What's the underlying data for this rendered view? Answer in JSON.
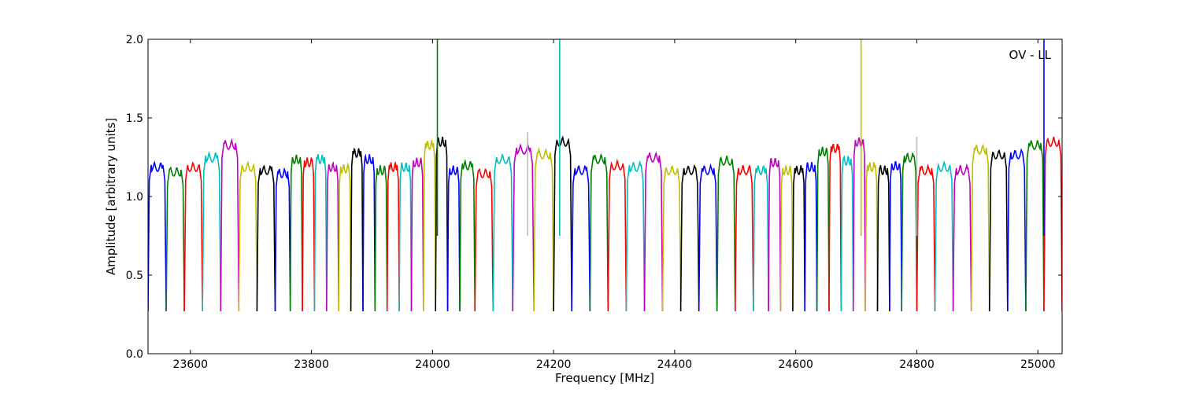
{
  "chart_data": {
    "type": "line",
    "title": "",
    "annotation": "OV - LL",
    "xlabel": "Frequency [MHz]",
    "ylabel": "Amplitude [arbitrary units]",
    "xlim": [
      23530,
      25040
    ],
    "ylim": [
      0.0,
      2.0
    ],
    "xticks": [
      23600,
      23800,
      24000,
      24200,
      24400,
      24600,
      24800,
      25000
    ],
    "yticks": [
      0.0,
      0.5,
      1.0,
      1.5,
      2.0
    ],
    "xtick_labels": [
      "23600",
      "23800",
      "24000",
      "24200",
      "24400",
      "24600",
      "24800",
      "25000"
    ],
    "ytick_labels": [
      "0.0",
      "0.5",
      "1.0",
      "1.5",
      "2.0"
    ],
    "grid": false,
    "legend": "none",
    "palette": [
      "#0000ff",
      "#008000",
      "#ff0000",
      "#00bfbf",
      "#bf00bf",
      "#bfbf00",
      "#000000"
    ],
    "band_center_x": [
      23545,
      23575,
      23605,
      23635,
      23665,
      23695,
      23725,
      23755,
      23775,
      23795,
      23815,
      23835,
      23855,
      23875,
      23895,
      23915,
      23935,
      23955,
      23975,
      23995,
      24015,
      24035,
      24055,
      24085,
      24115,
      24150,
      24185,
      24215,
      24245,
      24275,
      24305,
      24335,
      24365,
      24395,
      24425,
      24455,
      24485,
      24515,
      24545,
      24565,
      24585,
      24605,
      24625,
      24645,
      24665,
      24685,
      24705,
      24725,
      24745,
      24765,
      24785,
      24815,
      24845,
      24875,
      24905,
      24935,
      24965,
      24995,
      25025
    ],
    "band_peak_y": [
      1.22,
      1.19,
      1.22,
      1.28,
      1.36,
      1.22,
      1.2,
      1.18,
      1.27,
      1.25,
      1.27,
      1.22,
      1.21,
      1.31,
      1.27,
      1.2,
      1.22,
      1.22,
      1.25,
      1.36,
      1.38,
      1.2,
      1.23,
      1.18,
      1.27,
      1.33,
      1.3,
      1.38,
      1.2,
      1.27,
      1.23,
      1.22,
      1.28,
      1.2,
      1.2,
      1.2,
      1.26,
      1.2,
      1.2,
      1.25,
      1.2,
      1.2,
      1.22,
      1.32,
      1.34,
      1.26,
      1.38,
      1.22,
      1.2,
      1.23,
      1.28,
      1.2,
      1.22,
      1.2,
      1.33,
      1.3,
      1.3,
      1.36,
      1.38
    ],
    "band_min_y": 0.27,
    "spikes": [
      {
        "x": 24008,
        "y": 2.0,
        "color": "#008000"
      },
      {
        "x": 24210,
        "y": 2.0,
        "color": "#00bfbf"
      },
      {
        "x": 24708,
        "y": 2.0,
        "color": "#bfbf00"
      },
      {
        "x": 25010,
        "y": 2.0,
        "color": "#0000ff"
      },
      {
        "x": 24157,
        "y": 1.41,
        "color": "#bbbbbb"
      },
      {
        "x": 24800,
        "y": 1.38,
        "color": "#bbbbbb"
      }
    ]
  }
}
